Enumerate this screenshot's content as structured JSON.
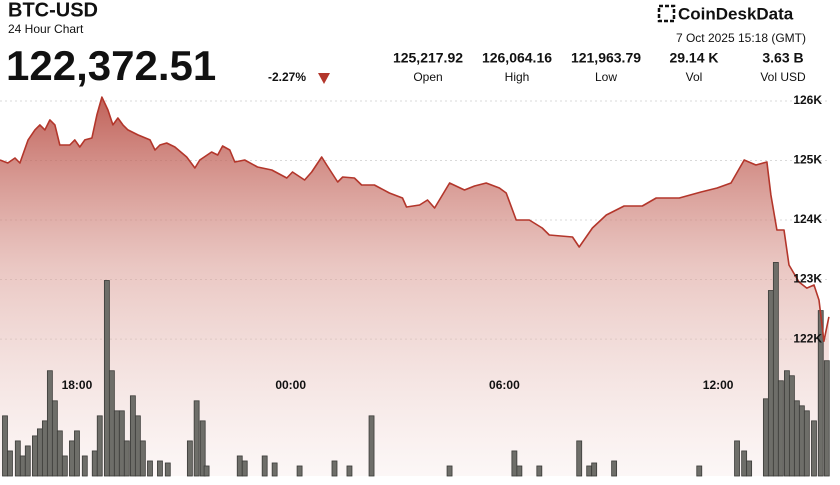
{
  "chart_data": {
    "type": "area",
    "title": "BTC-USD",
    "subtitle": "24 Hour Chart",
    "price": "122,372.51",
    "change": "-2.27%",
    "brand": "CoinDeskData",
    "timestamp": "7 Oct 2025 15:18 (GMT)",
    "stats": [
      {
        "value": "125,217.92",
        "label": "Open"
      },
      {
        "value": "126,064.16",
        "label": "High"
      },
      {
        "value": "121,963.79",
        "label": "Low"
      },
      {
        "value": "29.14 K",
        "label": "Vol"
      },
      {
        "value": "3.63 B",
        "label": "Vol USD"
      }
    ],
    "xlim": [
      15.84,
      39.14
    ],
    "xticks": [
      {
        "value": 18,
        "label": "18:00"
      },
      {
        "value": 24,
        "label": "00:00"
      },
      {
        "value": 30,
        "label": "06:00"
      },
      {
        "value": 36,
        "label": "12:00"
      }
    ],
    "ylim": [
      119700,
      126100
    ],
    "yticks": [
      {
        "value": 122000,
        "label": "122K"
      },
      {
        "value": 123000,
        "label": "123K"
      },
      {
        "value": 124000,
        "label": "124K"
      },
      {
        "value": 125000,
        "label": "125K"
      },
      {
        "value": 126000,
        "label": "126K"
      }
    ],
    "y2lim": [
      0,
      380
    ],
    "grid": true,
    "series": [
      {
        "color": "#b3362b",
        "x": [
          15.84,
          16.06,
          16.26,
          16.4,
          16.63,
          16.82,
          16.96,
          17.1,
          17.24,
          17.38,
          17.52,
          17.8,
          17.94,
          18.08,
          18.22,
          18.42,
          18.56,
          18.7,
          18.87,
          19.01,
          19.15,
          19.29,
          19.43,
          19.71,
          20.05,
          20.19,
          20.33,
          20.52,
          20.75,
          21.08,
          21.31,
          21.45,
          21.78,
          21.95,
          22.09,
          22.29,
          22.43,
          22.71,
          23.07,
          23.47,
          23.89,
          24.05,
          24.39,
          24.59,
          24.87,
          25.01,
          25.32,
          25.46,
          25.79,
          25.99,
          26.35,
          26.77,
          27.14,
          27.25,
          27.62,
          27.84,
          28.04,
          28.46,
          28.88,
          29.16,
          29.49,
          29.86,
          30.05,
          30.33,
          30.7,
          31.06,
          31.26,
          31.91,
          32.1,
          32.47,
          32.86,
          33.36,
          33.87,
          34.26,
          34.91,
          35.52,
          35.97,
          36.36,
          36.73,
          37.06,
          37.37,
          37.48,
          37.65,
          37.85,
          37.99,
          38.27,
          38.49,
          38.69,
          38.83,
          38.97,
          39.11
        ],
        "values": [
          125008,
          124958,
          125042,
          124958,
          125345,
          125513,
          125597,
          125513,
          125681,
          125597,
          125260,
          125260,
          125345,
          125227,
          125345,
          125378,
          125765,
          126064,
          125849,
          125597,
          125714,
          125597,
          125513,
          125429,
          125345,
          125176,
          125260,
          125294,
          125227,
          125059,
          124874,
          125008,
          125143,
          125092,
          125244,
          125176,
          124975,
          125008,
          124891,
          124840,
          124706,
          124807,
          124672,
          124807,
          125059,
          124924,
          124639,
          124723,
          124706,
          124588,
          124588,
          124454,
          124370,
          124218,
          124252,
          124336,
          124202,
          124622,
          124504,
          124571,
          124622,
          124538,
          124454,
          124000,
          124000,
          123866,
          123748,
          123714,
          123546,
          123866,
          124084,
          124235,
          124235,
          124370,
          124370,
          124471,
          124538,
          124622,
          125008,
          124924,
          124975,
          124420,
          123832,
          123832,
          123244,
          122958,
          122857,
          122908,
          122655,
          121964,
          122373
        ]
      },
      {
        "color": "#6e6e69",
        "axis": "y2",
        "x": [
          15.98,
          16.12,
          16.34,
          16.48,
          16.62,
          16.82,
          16.96,
          17.1,
          17.24,
          17.38,
          17.52,
          17.66,
          17.86,
          18.0,
          18.22,
          18.5,
          18.64,
          18.84,
          18.98,
          19.12,
          19.26,
          19.4,
          19.57,
          19.71,
          19.85,
          20.05,
          20.33,
          20.55,
          21.17,
          21.36,
          21.53,
          21.64,
          22.57,
          22.71,
          23.27,
          23.55,
          24.25,
          25.23,
          25.65,
          26.27,
          28.46,
          30.28,
          30.42,
          30.98,
          32.1,
          32.38,
          32.52,
          33.08,
          35.47,
          36.53,
          36.73,
          36.87,
          37.34,
          37.48,
          37.62,
          37.76,
          37.93,
          38.07,
          38.21,
          38.35,
          38.49,
          38.69,
          38.88,
          39.05
        ],
        "values": [
          60,
          25,
          35,
          20,
          30,
          40,
          47,
          55,
          105,
          75,
          45,
          20,
          35,
          45,
          20,
          25,
          60,
          195,
          105,
          65,
          65,
          35,
          80,
          60,
          35,
          15,
          15,
          13,
          35,
          75,
          55,
          10,
          20,
          15,
          20,
          13,
          10,
          15,
          10,
          60,
          10,
          25,
          10,
          10,
          35,
          10,
          13,
          15,
          10,
          35,
          25,
          15,
          77,
          185,
          213,
          95,
          105,
          100,
          75,
          70,
          65,
          55,
          165,
          115
        ]
      }
    ]
  }
}
